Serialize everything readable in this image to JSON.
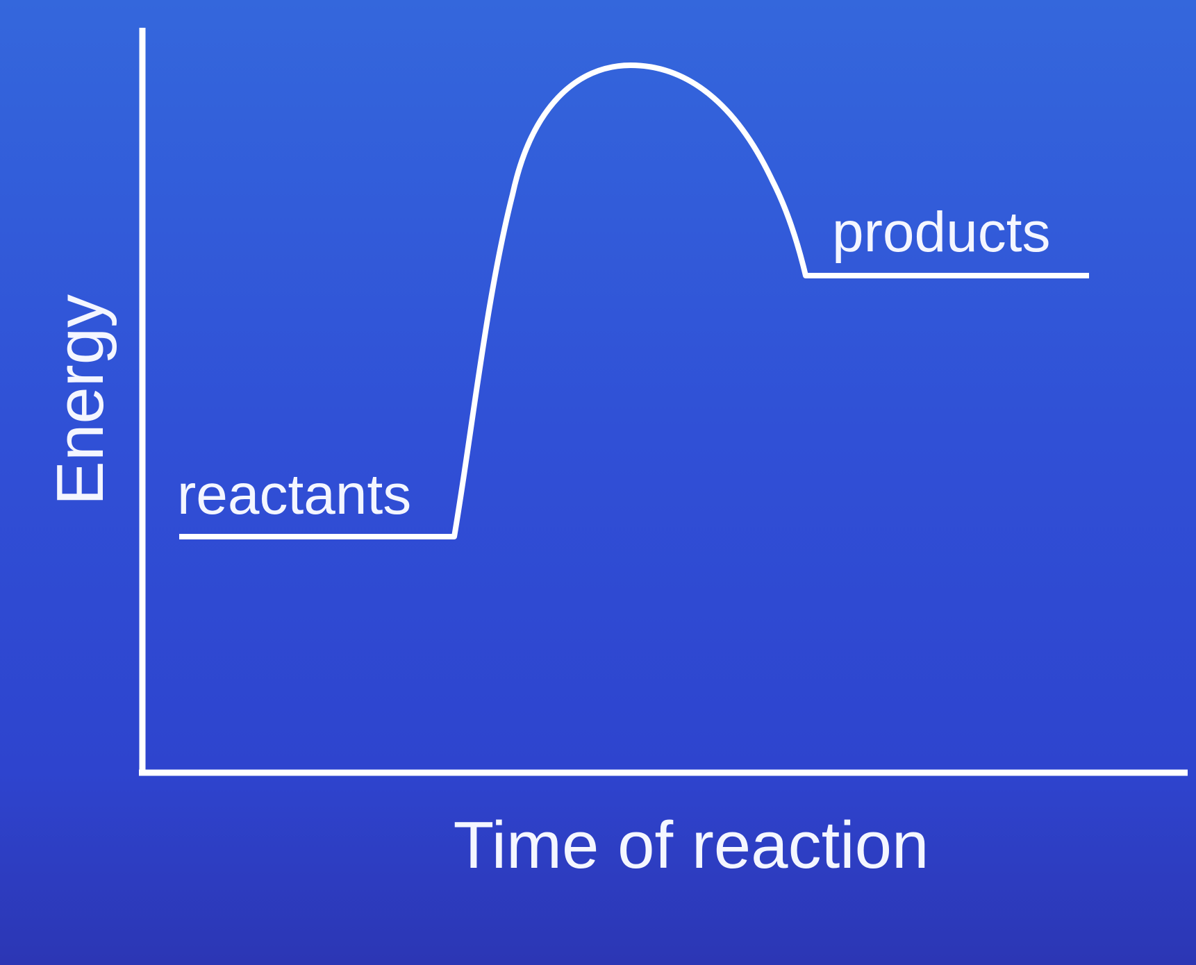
{
  "diagram": {
    "y_axis_label": "Energy",
    "x_axis_label": "Time of reaction",
    "state_labels": {
      "reactants": "reactants",
      "products": "products"
    },
    "colors": {
      "background_top": "#3467dc",
      "background_bottom": "#2c36b4",
      "line": "#ffffff",
      "text": "#f4f6ff"
    }
  }
}
